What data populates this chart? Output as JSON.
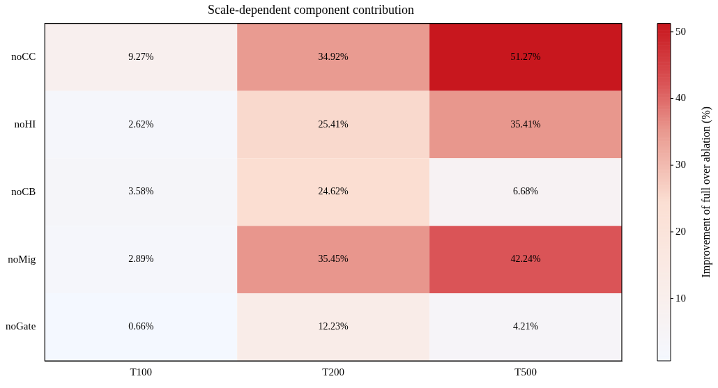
{
  "chart_data": {
    "type": "heatmap",
    "title": "Scale-dependent component contribution",
    "categories": [
      "T100",
      "T200",
      "T500"
    ],
    "y_categories": [
      "noCC",
      "noHI",
      "noCB",
      "noMig",
      "noGate"
    ],
    "cells": [
      [
        9.27,
        34.92,
        51.27
      ],
      [
        2.62,
        25.41,
        35.41
      ],
      [
        3.58,
        24.62,
        6.68
      ],
      [
        2.89,
        35.45,
        42.24
      ],
      [
        0.66,
        12.23,
        4.21
      ]
    ],
    "cell_labels": [
      [
        "9.27%",
        "34.92%",
        "51.27%"
      ],
      [
        "2.62%",
        "25.41%",
        "35.41%"
      ],
      [
        "3.58%",
        "24.62%",
        "6.68%"
      ],
      [
        "2.89%",
        "35.45%",
        "42.24%"
      ],
      [
        "0.66%",
        "12.23%",
        "4.21%"
      ]
    ],
    "clabel": "Improvement of full over ablation (%)",
    "clim": [
      0.66,
      51.27
    ],
    "cticks": [
      10,
      20,
      30,
      40,
      50
    ]
  }
}
